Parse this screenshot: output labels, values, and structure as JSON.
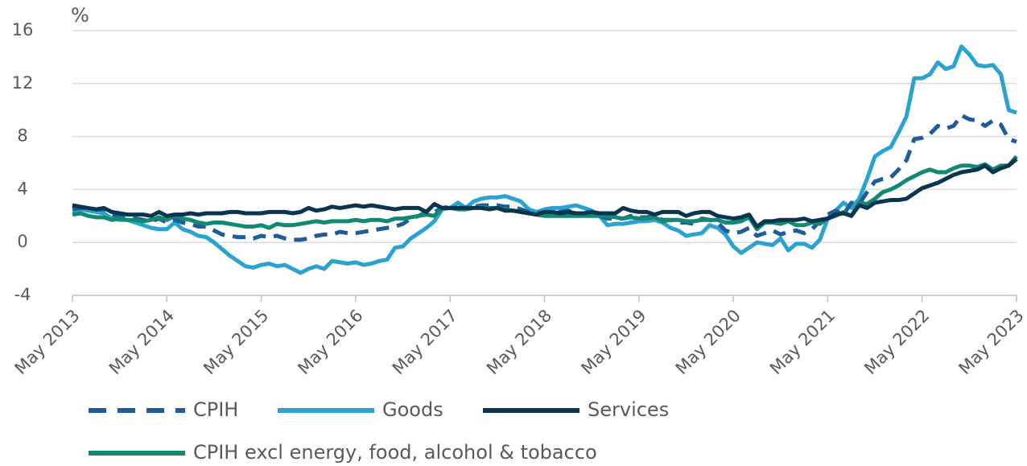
{
  "chart_data": {
    "type": "line",
    "y_label": "%",
    "categories": [
      "May 2013",
      null,
      null,
      null,
      null,
      null,
      null,
      null,
      null,
      null,
      null,
      null,
      "May 2014",
      null,
      null,
      null,
      null,
      null,
      null,
      null,
      null,
      null,
      null,
      null,
      "May 2015",
      null,
      null,
      null,
      null,
      null,
      null,
      null,
      null,
      null,
      null,
      null,
      "May 2016",
      null,
      null,
      null,
      null,
      null,
      null,
      null,
      null,
      null,
      null,
      null,
      "May 2017",
      null,
      null,
      null,
      null,
      null,
      null,
      null,
      null,
      null,
      null,
      null,
      "May 2018",
      null,
      null,
      null,
      null,
      null,
      null,
      null,
      null,
      null,
      null,
      null,
      "May 2019",
      null,
      null,
      null,
      null,
      null,
      null,
      null,
      null,
      null,
      null,
      null,
      "May 2020",
      null,
      null,
      null,
      null,
      null,
      null,
      null,
      null,
      null,
      null,
      null,
      "May 2021",
      null,
      null,
      null,
      null,
      null,
      null,
      null,
      null,
      null,
      null,
      null,
      "May 2022",
      null,
      null,
      null,
      null,
      null,
      null,
      null,
      null,
      null,
      null,
      null,
      "May 2023"
    ],
    "ylim": [
      -4,
      16
    ],
    "yticks": [
      -4,
      0,
      4,
      8,
      12,
      16
    ],
    "grid": true,
    "legend": "bottom",
    "series": [
      {
        "name": "CPIH",
        "color": "#1f5c99",
        "dashed": true,
        "values": [
          2.5,
          2.6,
          2.6,
          2.5,
          2.5,
          2.1,
          2.0,
          1.9,
          1.8,
          1.7,
          1.6,
          1.8,
          1.5,
          1.7,
          1.5,
          1.4,
          1.2,
          1.2,
          0.9,
          0.6,
          0.5,
          0.4,
          0.4,
          0.3,
          0.5,
          0.4,
          0.5,
          0.3,
          0.2,
          0.2,
          0.3,
          0.5,
          0.6,
          0.6,
          0.8,
          0.7,
          0.7,
          0.8,
          0.9,
          1.0,
          1.1,
          1.2,
          1.4,
          1.8,
          2.0,
          2.3,
          2.3,
          2.6,
          2.7,
          2.6,
          2.6,
          2.7,
          2.8,
          2.8,
          2.8,
          2.7,
          2.7,
          2.5,
          2.3,
          2.2,
          2.3,
          2.3,
          2.3,
          2.4,
          2.2,
          2.2,
          2.2,
          2.0,
          1.8,
          1.8,
          1.8,
          2.0,
          1.9,
          1.9,
          2.0,
          1.7,
          1.7,
          1.5,
          1.5,
          1.4,
          1.8,
          1.7,
          1.5,
          0.9,
          0.7,
          0.8,
          1.1,
          0.5,
          0.7,
          0.9,
          0.6,
          0.8,
          0.9,
          0.7,
          1.0,
          1.6,
          2.1,
          2.4,
          2.1,
          3.0,
          2.9,
          3.8,
          4.6,
          4.8,
          4.9,
          5.5,
          6.2,
          7.8,
          7.9,
          8.2,
          8.8,
          8.6,
          8.8,
          9.6,
          9.3,
          9.2,
          8.8,
          9.2,
          8.9,
          7.8,
          7.6
        ]
      },
      {
        "name": "Goods",
        "color": "#2aa3d0",
        "values": [
          2.4,
          2.5,
          2.4,
          2.3,
          2.2,
          1.8,
          1.7,
          1.7,
          1.5,
          1.3,
          1.1,
          1.0,
          1.0,
          1.5,
          1.0,
          0.8,
          0.5,
          0.4,
          0.0,
          -0.5,
          -1.0,
          -1.4,
          -1.8,
          -1.9,
          -1.7,
          -1.6,
          -1.8,
          -1.7,
          -2.0,
          -2.3,
          -2.0,
          -1.8,
          -2.0,
          -1.4,
          -1.5,
          -1.6,
          -1.5,
          -1.7,
          -1.6,
          -1.4,
          -1.3,
          -0.4,
          -0.3,
          0.3,
          0.7,
          1.1,
          1.6,
          2.5,
          2.6,
          3.0,
          2.6,
          3.1,
          3.3,
          3.4,
          3.4,
          3.5,
          3.3,
          3.1,
          2.5,
          2.3,
          2.5,
          2.6,
          2.6,
          2.7,
          2.8,
          2.6,
          2.4,
          2.0,
          1.3,
          1.4,
          1.4,
          1.5,
          1.6,
          1.6,
          1.7,
          1.5,
          1.1,
          0.9,
          0.5,
          0.6,
          0.7,
          1.3,
          1.1,
          0.6,
          -0.3,
          -0.8,
          -0.4,
          0.0,
          -0.1,
          -0.2,
          0.3,
          -0.6,
          -0.1,
          -0.1,
          -0.4,
          0.2,
          1.8,
          2.4,
          3.0,
          2.6,
          3.3,
          4.8,
          6.5,
          6.9,
          7.2,
          8.3,
          9.5,
          12.4,
          12.4,
          12.7,
          13.6,
          13.1,
          13.3,
          14.8,
          14.2,
          13.4,
          13.3,
          13.4,
          12.7,
          10.0,
          9.8
        ]
      },
      {
        "name": "Services",
        "color": "#0a3550",
        "values": [
          2.8,
          2.7,
          2.6,
          2.5,
          2.6,
          2.3,
          2.2,
          2.1,
          2.1,
          2.1,
          2.0,
          2.3,
          2.0,
          2.1,
          2.1,
          2.2,
          2.1,
          2.2,
          2.2,
          2.2,
          2.3,
          2.3,
          2.2,
          2.2,
          2.2,
          2.3,
          2.3,
          2.3,
          2.2,
          2.3,
          2.6,
          2.4,
          2.5,
          2.7,
          2.6,
          2.7,
          2.8,
          2.7,
          2.8,
          2.7,
          2.6,
          2.5,
          2.6,
          2.6,
          2.6,
          2.3,
          2.9,
          2.6,
          2.6,
          2.6,
          2.6,
          2.6,
          2.6,
          2.5,
          2.6,
          2.4,
          2.4,
          2.3,
          2.2,
          2.1,
          2.3,
          2.3,
          2.2,
          2.3,
          2.2,
          2.2,
          2.3,
          2.2,
          2.2,
          2.2,
          2.6,
          2.4,
          2.3,
          2.3,
          2.1,
          2.3,
          2.3,
          2.3,
          2.0,
          2.2,
          2.3,
          2.3,
          2.0,
          1.9,
          1.8,
          1.9,
          2.1,
          1.2,
          1.6,
          1.6,
          1.7,
          1.7,
          1.7,
          1.8,
          1.6,
          1.7,
          1.8,
          2.1,
          2.2,
          2.0,
          2.8,
          2.6,
          3.0,
          3.1,
          3.2,
          3.2,
          3.3,
          3.7,
          4.1,
          4.3,
          4.5,
          4.8,
          5.1,
          5.3,
          5.4,
          5.5,
          5.8,
          5.3,
          5.6,
          5.8,
          6.3
        ]
      },
      {
        "name": "CPIH excl energy, food, alcohol & tobacco",
        "color": "#118a73",
        "values": [
          2.1,
          2.2,
          2.0,
          1.9,
          1.9,
          1.7,
          1.8,
          1.7,
          1.7,
          1.6,
          1.7,
          1.9,
          1.7,
          2.0,
          1.8,
          1.7,
          1.5,
          1.4,
          1.5,
          1.5,
          1.4,
          1.3,
          1.2,
          1.2,
          1.3,
          1.1,
          1.4,
          1.3,
          1.3,
          1.4,
          1.5,
          1.6,
          1.5,
          1.6,
          1.6,
          1.6,
          1.7,
          1.6,
          1.7,
          1.7,
          1.6,
          1.8,
          1.8,
          1.9,
          2.0,
          2.1,
          2.0,
          2.6,
          2.6,
          2.5,
          2.5,
          2.6,
          2.7,
          2.6,
          2.6,
          2.5,
          2.4,
          2.3,
          2.2,
          2.1,
          2.0,
          2.0,
          2.0,
          2.0,
          2.0,
          2.0,
          2.0,
          2.0,
          2.0,
          1.9,
          1.8,
          1.9,
          1.8,
          1.8,
          1.9,
          1.6,
          1.7,
          1.7,
          1.6,
          1.6,
          1.7,
          1.7,
          1.7,
          1.5,
          1.5,
          1.6,
          1.9,
          1.0,
          1.5,
          1.5,
          1.4,
          1.6,
          1.3,
          1.3,
          1.5,
          1.4,
          1.8,
          2.0,
          2.3,
          2.0,
          3.0,
          2.9,
          3.3,
          3.8,
          4.0,
          4.3,
          4.7,
          5.0,
          5.3,
          5.5,
          5.3,
          5.3,
          5.6,
          5.8,
          5.8,
          5.7,
          5.9,
          5.5,
          5.8,
          5.8,
          6.5
        ]
      }
    ]
  }
}
